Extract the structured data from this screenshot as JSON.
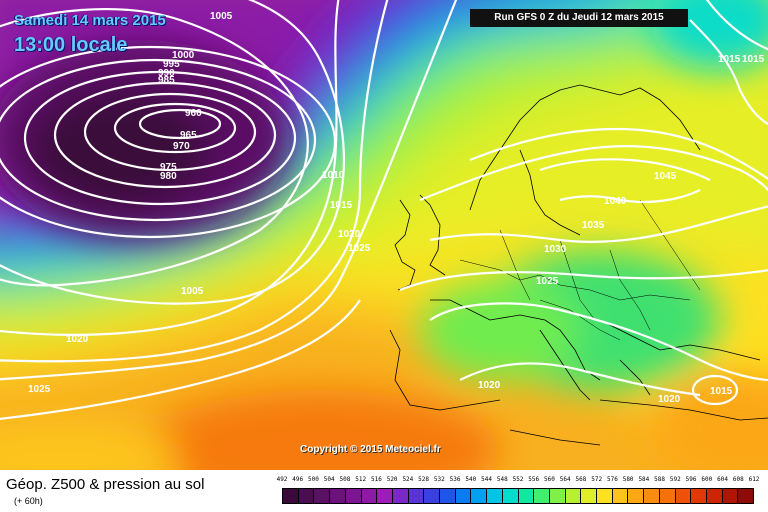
{
  "header": {
    "date": "Samedi 14 mars 2015",
    "time": "13:00 locale",
    "run": "Run GFS 0 Z du Jeudi 12 mars 2015"
  },
  "copyright": "Copyright © 2015 Meteociel.fr",
  "footer": {
    "title": "Géop. Z500 & pression au sol",
    "forecast_hour": "(+ 60h)"
  },
  "isobar_labels": [
    "1005",
    "1000",
    "995",
    "990",
    "985",
    "960",
    "965",
    "970",
    "975",
    "980",
    "1010",
    "1015",
    "1020",
    "1025",
    "1005",
    "1020",
    "1025",
    "1030",
    "1035",
    "1040",
    "1045",
    "1025",
    "1020",
    "1020",
    "1015",
    "1015",
    "1015"
  ],
  "legend": {
    "ticks": [
      "492",
      "496",
      "500",
      "504",
      "508",
      "512",
      "516",
      "520",
      "524",
      "528",
      "532",
      "536",
      "540",
      "544",
      "548",
      "552",
      "556",
      "560",
      "564",
      "568",
      "572",
      "576",
      "580",
      "584",
      "588",
      "592",
      "596",
      "600",
      "604",
      "608",
      "612"
    ],
    "colors": [
      "#3a0a3a",
      "#4a0d4d",
      "#5a1063",
      "#6b137a",
      "#7c1690",
      "#8d1aa5",
      "#9c1db8",
      "#7a28c8",
      "#5a34d6",
      "#3a3fe4",
      "#1f55ea",
      "#0a7bf0",
      "#00a0f0",
      "#00c4e6",
      "#00ddcc",
      "#10e8a0",
      "#40ee70",
      "#80f048",
      "#b6f030",
      "#e0ee28",
      "#fde020",
      "#fcc41a",
      "#fca814",
      "#fa8c10",
      "#f6700c",
      "#ee5208",
      "#e03806",
      "#cc2404",
      "#b01404",
      "#8e0a04"
    ]
  }
}
